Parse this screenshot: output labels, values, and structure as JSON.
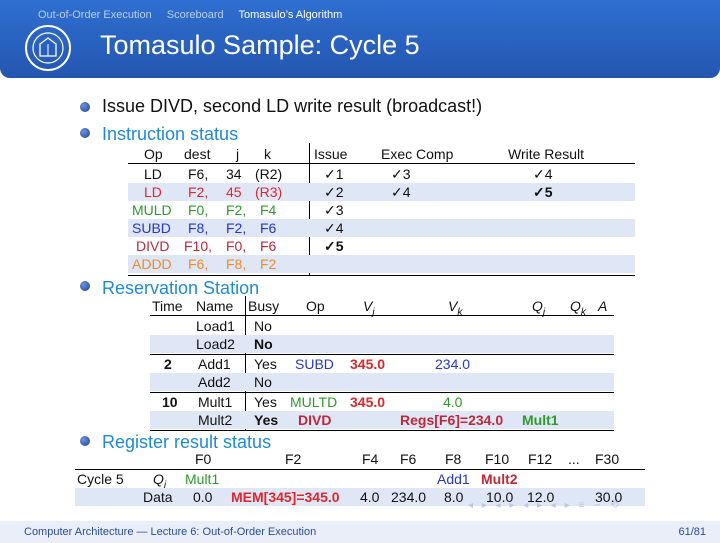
{
  "nav": {
    "items": [
      "Out-of-Order Execution",
      "Scoreboard",
      "Tomasulo’s Algorithm"
    ]
  },
  "title": "Tomasulo Sample: Cycle 5",
  "bullets": [
    "Issue DIVD, second LD write result (broadcast!)",
    "Instruction status",
    "Reservation Station",
    "Register result status"
  ],
  "instr_headers": [
    "Op",
    "dest",
    "j",
    "k",
    "Issue",
    "Exec Comp",
    "Write Result"
  ],
  "instr_rows": [
    {
      "op": "LD",
      "dest": "F6,",
      "j": "34",
      "k": "(R2)",
      "issue": "✓1",
      "exec": "✓3",
      "write": "✓4"
    },
    {
      "op": "LD",
      "dest": "F2,",
      "j": "45",
      "k": "(R3)",
      "issue": "✓2",
      "exec": "✓4",
      "write": "✓5"
    },
    {
      "op": "MULD",
      "dest": "F0,",
      "j": "F2,",
      "k": "F4",
      "issue": "✓3",
      "exec": "",
      "write": ""
    },
    {
      "op": "SUBD",
      "dest": "F8,",
      "j": "F2,",
      "k": "F6",
      "issue": "✓4",
      "exec": "",
      "write": ""
    },
    {
      "op": "DIVD",
      "dest": "F10,",
      "j": "F0,",
      "k": "F6",
      "issue": "✓5",
      "exec": "",
      "write": ""
    },
    {
      "op": "ADDD",
      "dest": "F6,",
      "j": "F8,",
      "k": "F2",
      "issue": "",
      "exec": "",
      "write": ""
    }
  ],
  "rs_headers": [
    "Time",
    "Name",
    "Busy",
    "Op",
    "V",
    "j",
    "V",
    "k",
    "Q",
    "j",
    "Q",
    "k",
    "A"
  ],
  "rs_rows": [
    {
      "time": "",
      "name": "Load1",
      "busy": "No",
      "op": "",
      "vj": "",
      "vk": "",
      "qj": "",
      "qk": ""
    },
    {
      "time": "",
      "name": "Load2",
      "busy": "No",
      "op": "",
      "vj": "",
      "vk": "",
      "qj": "",
      "qk": ""
    },
    {
      "time": "2",
      "name": "Add1",
      "busy": "Yes",
      "op": "SUBD",
      "vj": "345.0",
      "vk": "234.0",
      "qj": "",
      "qk": ""
    },
    {
      "time": "",
      "name": "Add2",
      "busy": "No",
      "op": "",
      "vj": "",
      "vk": "",
      "qj": "",
      "qk": ""
    },
    {
      "time": "10",
      "name": "Mult1",
      "busy": "Yes",
      "op": "MULTD",
      "vj": "345.0",
      "vk": "4.0",
      "qj": "",
      "qk": ""
    },
    {
      "time": "",
      "name": "Mult2",
      "busy": "Yes",
      "op": "DIVD",
      "vj": "",
      "vk": "Regs[F6]=234.0",
      "qj": "Mult1",
      "qk": ""
    }
  ],
  "reg": {
    "headers": [
      "F0",
      "F2",
      "F4",
      "F6",
      "F8",
      "F10",
      "F12",
      "...",
      "F30"
    ],
    "cycle_label": "Cycle 5",
    "qi_label": "Q",
    "qi_sub": "i",
    "data_label": "Data",
    "qi": [
      "Mult1",
      "",
      "",
      "",
      "Add1",
      "Mult2",
      "",
      "",
      ""
    ],
    "data": [
      "0.0",
      "MEM[345]=345.0",
      "4.0",
      "234.0",
      "8.0",
      "10.0",
      "12.0",
      "",
      "30.0"
    ]
  },
  "footer": {
    "left": "Computer Architecture — Lecture 6: Out-of-Order Execution",
    "right": "61/81"
  }
}
